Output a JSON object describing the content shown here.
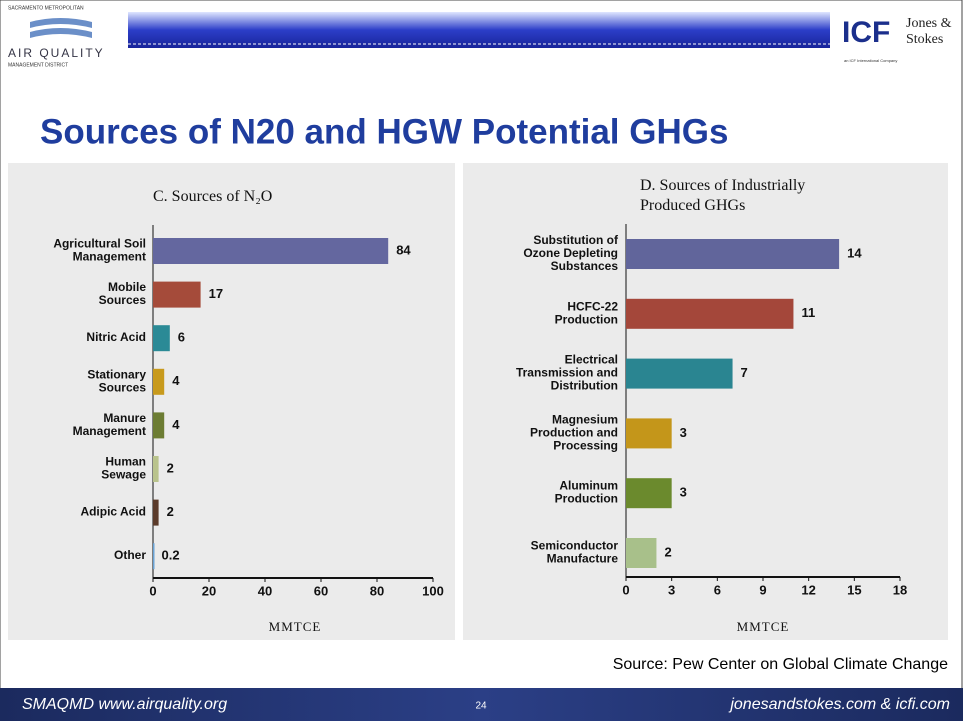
{
  "header": {
    "left_logo": [
      "SACRAMENTO METROPOLITAN",
      "AIR QUALITY",
      "MANAGEMENT DISTRICT"
    ],
    "right_logo": [
      "ICF",
      "Jones &",
      "Stokes",
      "an ICF International Company"
    ]
  },
  "title": "Sources of N20 and HGW Potential GHGs",
  "chart_data": [
    {
      "type": "bar",
      "orientation": "horizontal",
      "title": [
        "C. Sources of N₂O"
      ],
      "xlabel": "MMTCE",
      "categories": [
        [
          "Agricultural Soil",
          "Management"
        ],
        [
          "Mobile",
          "Sources"
        ],
        [
          "Nitric Acid"
        ],
        [
          "Stationary",
          "Sources"
        ],
        [
          "Manure",
          "Management"
        ],
        [
          "Human",
          "Sewage"
        ],
        [
          "Adipic Acid"
        ],
        [
          "Other"
        ]
      ],
      "values": [
        84,
        17,
        6,
        4,
        4,
        2,
        2,
        0.2
      ],
      "colors": [
        "#64679f",
        "#a54b3a",
        "#2b8a96",
        "#c89a1c",
        "#6c7c33",
        "#b9c38c",
        "#5b3b2a",
        "#6aa3d6"
      ],
      "xlim": [
        0,
        100
      ],
      "xticks": [
        0,
        20,
        40,
        60,
        80,
        100
      ]
    },
    {
      "type": "bar",
      "orientation": "horizontal",
      "title": [
        "D. Sources of Industrially",
        "Produced GHGs"
      ],
      "xlabel": "MMTCE",
      "categories": [
        [
          "Substitution of",
          "Ozone Depleting",
          "Substances"
        ],
        [
          "HCFC-22",
          "Production"
        ],
        [
          "Electrical",
          "Transmission and",
          "Distribution"
        ],
        [
          "Magnesium",
          "Production and",
          "Processing"
        ],
        [
          "Aluminum",
          "Production"
        ],
        [
          "Semiconductor",
          "Manufacture"
        ]
      ],
      "values": [
        14,
        11,
        7,
        3,
        3,
        2
      ],
      "colors": [
        "#61659b",
        "#a4473a",
        "#2a8591",
        "#c4961a",
        "#6b8a2d",
        "#a8c08a"
      ],
      "xlim": [
        0,
        18
      ],
      "xticks": [
        0,
        3,
        6,
        9,
        12,
        15,
        18
      ]
    }
  ],
  "source": "Source: Pew Center on Global Climate Change",
  "footer": {
    "left": "SMAQMD www.airquality.org",
    "page": "24",
    "right": "jonesandstokes.com & icfi.com"
  }
}
